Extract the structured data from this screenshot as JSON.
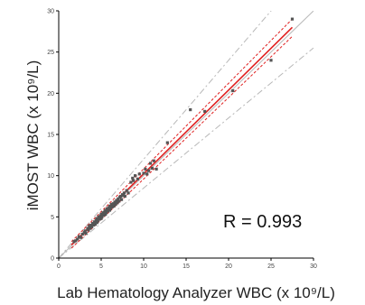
{
  "chart_data": {
    "type": "scatter",
    "title": "",
    "xlabel": "Lab Hematology Analyzer WBC (x 10⁹/L)",
    "ylabel": "iMOST WBC (x 10⁹/L)",
    "annotation": "R = 0.993",
    "xlim": [
      0,
      30
    ],
    "ylim": [
      0,
      30
    ],
    "x_ticks": [
      "0",
      "5",
      "10",
      "15",
      "20",
      "25",
      "30"
    ],
    "y_ticks": [
      "0",
      "5",
      "10",
      "15",
      "20",
      "25",
      "30"
    ],
    "grid": false,
    "legend": "none",
    "colors": {
      "points": "#555555",
      "regression": "#e02020",
      "identity": "#b8b8b8",
      "axis": "#000000"
    },
    "regression": {
      "x": [
        1.5,
        27.5
      ],
      "y": [
        1.6,
        28.0
      ]
    },
    "confidence_band": {
      "lower": {
        "x": [
          1.5,
          27.5
        ],
        "y": [
          1.2,
          26.9
        ]
      },
      "upper": {
        "x": [
          1.5,
          27.5
        ],
        "y": [
          2.0,
          29.0
        ]
      }
    },
    "identity_line": {
      "x": [
        0,
        30
      ],
      "y": [
        0,
        30
      ]
    },
    "limit_lines": [
      {
        "x": [
          0,
          27.5
        ],
        "y": [
          0,
          33.0
        ]
      },
      {
        "x": [
          0,
          30
        ],
        "y": [
          0,
          25.5
        ]
      }
    ],
    "points": [
      [
        1.8,
        2.0
      ],
      [
        2.0,
        2.1
      ],
      [
        2.2,
        2.3
      ],
      [
        2.4,
        2.6
      ],
      [
        2.6,
        2.5
      ],
      [
        2.8,
        2.9
      ],
      [
        3.0,
        3.1
      ],
      [
        3.1,
        3.3
      ],
      [
        3.2,
        3.0
      ],
      [
        3.4,
        3.6
      ],
      [
        3.5,
        3.4
      ],
      [
        3.6,
        3.9
      ],
      [
        3.7,
        3.6
      ],
      [
        3.8,
        4.0
      ],
      [
        3.9,
        3.8
      ],
      [
        4.0,
        4.2
      ],
      [
        4.1,
        4.0
      ],
      [
        4.2,
        4.4
      ],
      [
        4.3,
        4.1
      ],
      [
        4.4,
        4.6
      ],
      [
        4.5,
        4.3
      ],
      [
        4.5,
        4.8
      ],
      [
        4.6,
        4.5
      ],
      [
        4.7,
        5.0
      ],
      [
        4.8,
        4.7
      ],
      [
        4.9,
        5.1
      ],
      [
        5.0,
        4.8
      ],
      [
        5.0,
        5.3
      ],
      [
        5.1,
        5.0
      ],
      [
        5.2,
        5.5
      ],
      [
        5.3,
        5.2
      ],
      [
        5.4,
        5.6
      ],
      [
        5.5,
        5.3
      ],
      [
        5.5,
        5.8
      ],
      [
        5.6,
        5.5
      ],
      [
        5.7,
        6.0
      ],
      [
        5.8,
        5.7
      ],
      [
        5.9,
        6.1
      ],
      [
        6.0,
        5.8
      ],
      [
        6.0,
        6.3
      ],
      [
        6.1,
        6.0
      ],
      [
        6.2,
        6.5
      ],
      [
        6.3,
        6.2
      ],
      [
        6.4,
        6.6
      ],
      [
        6.5,
        6.3
      ],
      [
        6.6,
        6.8
      ],
      [
        6.7,
        6.5
      ],
      [
        6.8,
        7.0
      ],
      [
        6.9,
        6.7
      ],
      [
        7.0,
        7.2
      ],
      [
        7.1,
        6.9
      ],
      [
        7.2,
        7.4
      ],
      [
        7.3,
        7.5
      ],
      [
        7.4,
        7.1
      ],
      [
        7.5,
        7.7
      ],
      [
        7.6,
        7.6
      ],
      [
        7.7,
        7.9
      ],
      [
        7.8,
        7.5
      ],
      [
        8.0,
        8.2
      ],
      [
        8.2,
        7.9
      ],
      [
        8.5,
        9.2
      ],
      [
        8.7,
        9.7
      ],
      [
        8.8,
        9.4
      ],
      [
        9.0,
        10.0
      ],
      [
        9.3,
        9.6
      ],
      [
        9.5,
        10.2
      ],
      [
        10.0,
        10.3
      ],
      [
        10.2,
        10.8
      ],
      [
        10.4,
        10.2
      ],
      [
        10.6,
        10.6
      ],
      [
        10.8,
        11.5
      ],
      [
        11.0,
        10.9
      ],
      [
        11.2,
        11.8
      ],
      [
        11.5,
        10.8
      ],
      [
        12.8,
        14.0
      ],
      [
        15.5,
        18.0
      ],
      [
        17.2,
        17.8
      ],
      [
        20.5,
        20.3
      ],
      [
        25.0,
        24.0
      ],
      [
        27.5,
        29.0
      ]
    ]
  }
}
